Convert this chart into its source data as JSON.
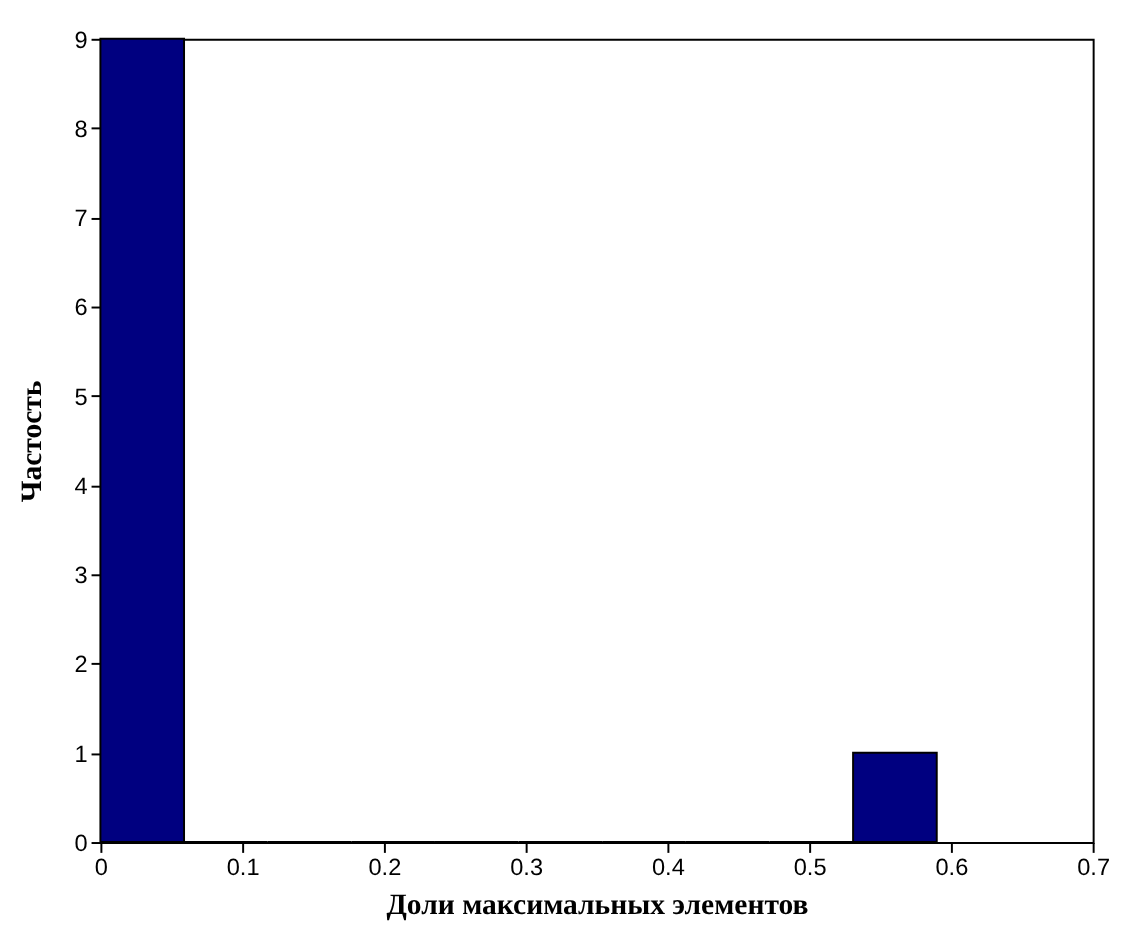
{
  "chart_data": {
    "type": "histogram",
    "xlabel": "Доли максимальных элементов",
    "ylabel": "Частость",
    "bins": [
      0,
      0.059,
      0.118,
      0.177,
      0.236,
      0.295,
      0.354,
      0.413,
      0.472,
      0.531,
      0.59
    ],
    "values": [
      9,
      0,
      0,
      0,
      0,
      0,
      0,
      0,
      0,
      1
    ],
    "color": "#000080",
    "xlim": [
      0,
      0.7
    ],
    "xticks": [
      0,
      0.1,
      0.2,
      0.3,
      0.4,
      0.5,
      0.6,
      0.7
    ],
    "ylim": [
      0,
      9
    ],
    "yticks": [
      0,
      1,
      2,
      3,
      4,
      5,
      6,
      7,
      8,
      9
    ],
    "grid": false
  }
}
